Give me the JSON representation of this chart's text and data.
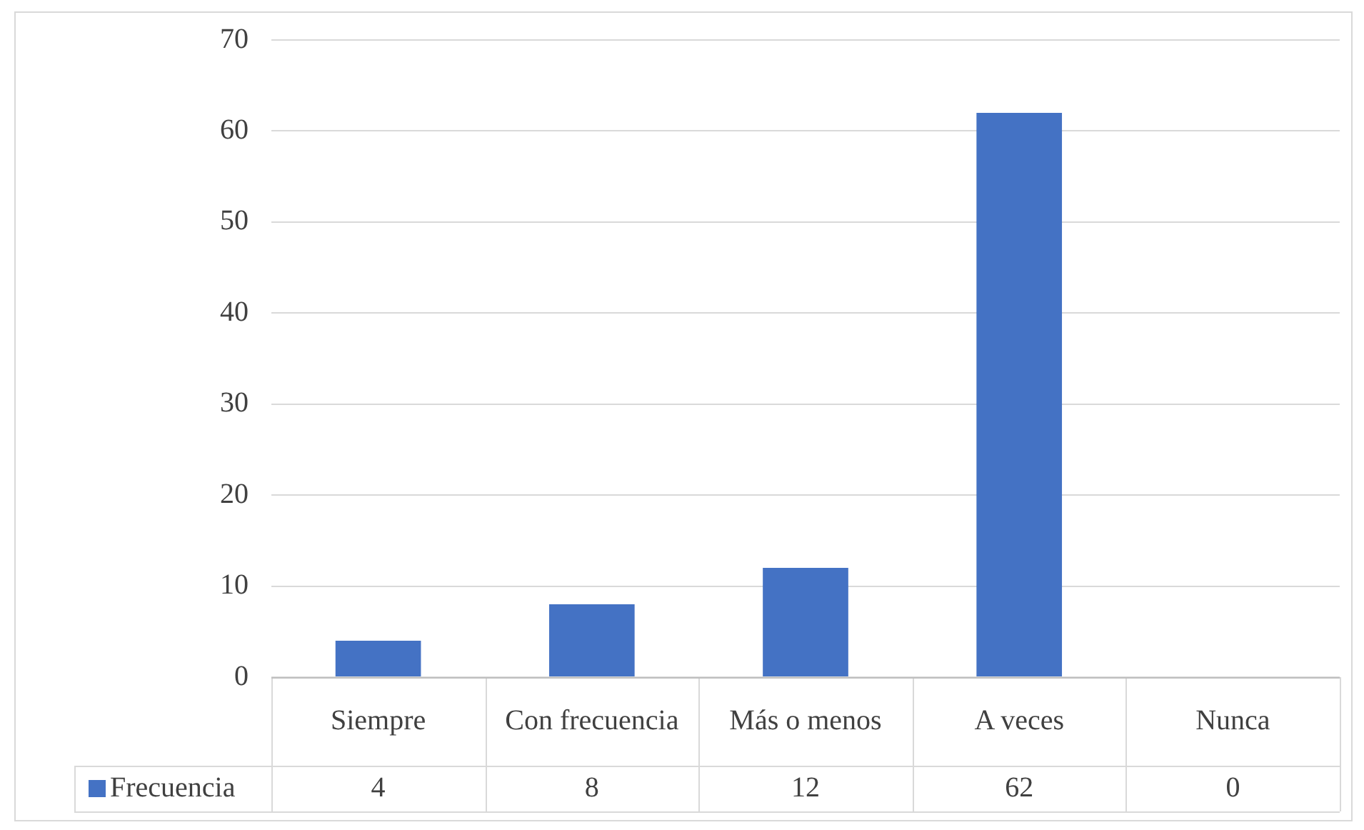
{
  "chart_data": {
    "type": "bar",
    "categories": [
      "Siempre",
      "Con frecuencia",
      "Más o menos",
      "A veces",
      "Nunca"
    ],
    "series": [
      {
        "name": "Frecuencia",
        "color": "#4472c4",
        "values": [
          4,
          8,
          12,
          62,
          0
        ]
      }
    ],
    "ylim": [
      0,
      70
    ],
    "yticks": [
      0,
      10,
      20,
      30,
      40,
      50,
      60,
      70
    ],
    "grid": "y",
    "legend": "bottom",
    "data_labels": true
  }
}
